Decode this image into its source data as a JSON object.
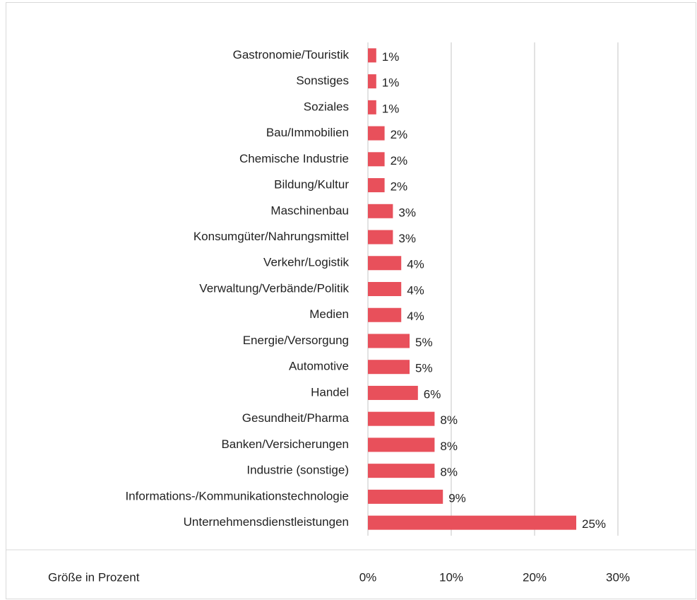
{
  "chart_data": {
    "type": "bar",
    "orientation": "horizontal",
    "x_label": "Größe in Prozent",
    "categories": [
      "Gastronomie/Touristik",
      "Sonstiges",
      "Soziales",
      "Bau/Immobilien",
      "Chemische Industrie",
      "Bildung/Kultur",
      "Maschinenbau",
      "Konsumgüter/Nahrungsmittel",
      "Verkehr/Logistik",
      "Verwaltung/Verbände/Politik",
      "Medien",
      "Energie/Versorgung",
      "Automotive",
      "Handel",
      "Gesundheit/Pharma",
      "Banken/Versicherungen",
      "Industrie (sonstige)",
      "Informations-/Kommunikationstechnologie",
      "Unternehmensdienstleistungen"
    ],
    "values": [
      1,
      1,
      1,
      2,
      2,
      2,
      3,
      3,
      4,
      4,
      4,
      5,
      5,
      6,
      8,
      8,
      8,
      9,
      25
    ],
    "value_labels": [
      "1%",
      "1%",
      "1%",
      "2%",
      "2%",
      "2%",
      "3%",
      "3%",
      "4%",
      "4%",
      "4%",
      "5%",
      "5%",
      "6%",
      "8%",
      "8%",
      "8%",
      "9%",
      "25%"
    ],
    "color": "#e8505b",
    "xlim": [
      0,
      30
    ],
    "xticks": [
      {
        "value": 0,
        "label": "0%"
      },
      {
        "value": 10,
        "label": "10%"
      },
      {
        "value": 20,
        "label": "20%"
      },
      {
        "value": 30,
        "label": "30%"
      }
    ],
    "grid": true
  }
}
